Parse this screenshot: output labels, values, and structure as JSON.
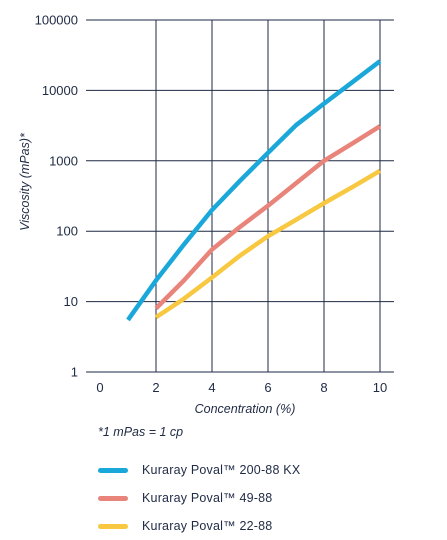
{
  "chart_data": {
    "type": "line",
    "xlabel": "Concentration (%)",
    "ylabel": "Viscosity (mPas)*",
    "xlim": [
      0,
      10
    ],
    "ylim": [
      1,
      100000
    ],
    "yscale": "log",
    "xticks": [
      0,
      2,
      4,
      6,
      8,
      10
    ],
    "yticks": [
      1,
      10,
      100,
      1000,
      10000,
      100000
    ],
    "xtick_labels": [
      "0",
      "2",
      "4",
      "6",
      "8",
      "10"
    ],
    "ytick_labels": [
      "1",
      "10",
      "100",
      "1000",
      "10000",
      "100000"
    ],
    "grid": true,
    "legend_position": "bottom",
    "footnote": "*1 mPas = 1 cp",
    "series": [
      {
        "name": "Kuraray Poval™ 200-88 KX",
        "color": "#1aa7d9",
        "x": [
          1,
          2,
          3,
          4,
          5,
          6,
          7,
          8,
          9,
          10
        ],
        "y": [
          5.5,
          20,
          65,
          200,
          520,
          1300,
          3200,
          6500,
          13000,
          26000
        ]
      },
      {
        "name": "Kuraray Poval™ 49-88",
        "color": "#e8847a",
        "x": [
          2,
          3,
          4,
          5,
          6,
          7,
          8,
          9,
          10
        ],
        "y": [
          8,
          20,
          55,
          115,
          230,
          480,
          1000,
          1750,
          3100
        ]
      },
      {
        "name": "Kuraray Poval™ 22-88",
        "color": "#f7c840",
        "x": [
          2,
          3,
          4,
          5,
          6,
          7,
          8,
          9,
          10
        ],
        "y": [
          6,
          11,
          22,
          45,
          85,
          145,
          250,
          420,
          720
        ]
      }
    ]
  }
}
